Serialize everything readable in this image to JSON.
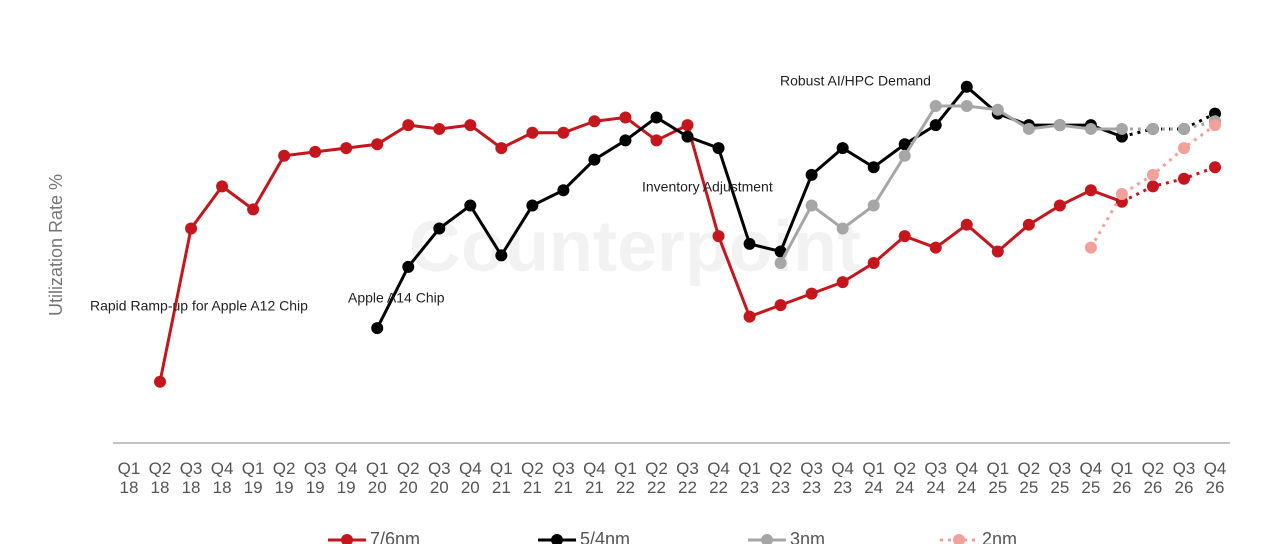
{
  "chart_data": {
    "type": "line",
    "y_axis_label": "Utilization Rate %",
    "watermark": "Counterpoint",
    "categories": [
      "Q1 18",
      "Q2 18",
      "Q3 18",
      "Q4 18",
      "Q1 19",
      "Q2 19",
      "Q3 19",
      "Q4 19",
      "Q1 20",
      "Q2 20",
      "Q3 20",
      "Q4 20",
      "Q1 21",
      "Q2 21",
      "Q3 21",
      "Q4 21",
      "Q1 22",
      "Q2 22",
      "Q3 22",
      "Q4 22",
      "Q1 23",
      "Q2 23",
      "Q3 23",
      "Q4 23",
      "Q1 24",
      "Q2 24",
      "Q3 24",
      "Q4 24",
      "Q1 25",
      "Q2 25",
      "Q3 25",
      "Q4 25",
      "Q1 26",
      "Q2 26",
      "Q3 26",
      "Q4 26"
    ],
    "ylim": [
      0,
      100
    ],
    "series": [
      {
        "name": "7/6nm",
        "color": "#c4161c",
        "forecast_from": "Q1 26",
        "values": [
          null,
          16,
          56,
          67,
          61,
          75,
          76,
          77,
          78,
          83,
          82,
          83,
          77,
          81,
          81,
          84,
          85,
          79,
          83,
          54,
          33,
          36,
          39,
          42,
          47,
          54,
          51,
          57,
          50,
          57,
          62,
          66,
          63,
          67,
          69,
          72
        ]
      },
      {
        "name": "5/4nm",
        "color": "#000000",
        "forecast_from": "Q1 26",
        "values": [
          null,
          null,
          null,
          null,
          null,
          null,
          null,
          null,
          30,
          46,
          56,
          62,
          49,
          62,
          66,
          74,
          79,
          85,
          80,
          77,
          52,
          50,
          70,
          77,
          72,
          78,
          83,
          93,
          86,
          83,
          83,
          83,
          80,
          82,
          82,
          86
        ]
      },
      {
        "name": "3nm",
        "color": "#a6a6a6",
        "forecast_from": "Q1 26",
        "values": [
          null,
          null,
          null,
          null,
          null,
          null,
          null,
          null,
          null,
          null,
          null,
          null,
          null,
          null,
          null,
          null,
          null,
          null,
          null,
          null,
          null,
          47,
          62,
          56,
          62,
          75,
          88,
          88,
          87,
          82,
          83,
          82,
          82,
          82,
          82,
          84
        ]
      },
      {
        "name": "2nm",
        "color": "#f4a09a",
        "forecast_from": "Q4 25",
        "values": [
          null,
          null,
          null,
          null,
          null,
          null,
          null,
          null,
          null,
          null,
          null,
          null,
          null,
          null,
          null,
          null,
          null,
          null,
          null,
          null,
          null,
          null,
          null,
          null,
          null,
          null,
          null,
          null,
          null,
          null,
          null,
          51,
          65,
          70,
          77,
          83
        ]
      }
    ],
    "annotations": [
      "Rapid Ramp-up for Apple A12 Chip",
      "Apple A14 Chip",
      "Inventory Adjustment",
      "Robust AI/HPC Demand"
    ]
  }
}
